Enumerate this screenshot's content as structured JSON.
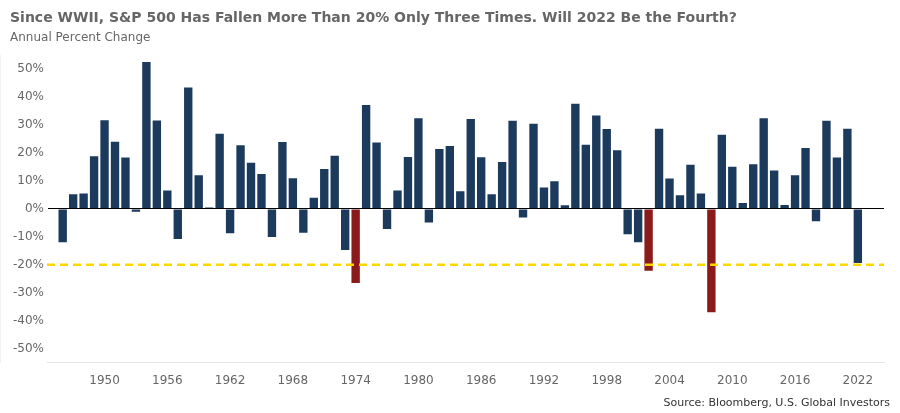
{
  "chart_data": {
    "type": "bar",
    "title": "Since WWII, S&P 500 Has Fallen More Than 20% Only Three Times. Will 2022 Be the Fourth?",
    "subtitle": "Annual Percent Change",
    "source": "Source: Bloomberg, U.S. Global Investors",
    "x": [
      1946,
      1947,
      1948,
      1949,
      1950,
      1951,
      1952,
      1953,
      1954,
      1955,
      1956,
      1957,
      1958,
      1959,
      1960,
      1961,
      1962,
      1963,
      1964,
      1965,
      1966,
      1967,
      1968,
      1969,
      1970,
      1971,
      1972,
      1973,
      1974,
      1975,
      1976,
      1977,
      1978,
      1979,
      1980,
      1981,
      1982,
      1983,
      1984,
      1985,
      1986,
      1987,
      1988,
      1989,
      1990,
      1991,
      1992,
      1993,
      1994,
      1995,
      1996,
      1997,
      1998,
      1999,
      2000,
      2001,
      2002,
      2003,
      2004,
      2005,
      2006,
      2007,
      2008,
      2009,
      2010,
      2011,
      2012,
      2013,
      2014,
      2015,
      2016,
      2017,
      2018,
      2019,
      2020,
      2021,
      2022
    ],
    "values": [
      -11.9,
      5.2,
      5.5,
      18.8,
      31.7,
      24.0,
      18.4,
      -1.0,
      52.6,
      31.6,
      6.6,
      -10.8,
      43.4,
      12.0,
      0.5,
      26.9,
      -8.7,
      22.8,
      16.5,
      12.5,
      -10.1,
      23.9,
      11.0,
      -8.5,
      4.0,
      14.3,
      19.0,
      -14.7,
      -26.5,
      37.2,
      23.8,
      -7.2,
      6.6,
      18.6,
      32.4,
      -4.9,
      21.4,
      22.5,
      6.3,
      32.2,
      18.5,
      5.2,
      16.8,
      31.5,
      -3.1,
      30.5,
      7.7,
      9.9,
      1.3,
      37.6,
      23.0,
      33.4,
      28.6,
      21.0,
      -9.1,
      -11.9,
      -22.1,
      28.7,
      10.9,
      4.9,
      15.8,
      5.5,
      -37.0,
      26.5,
      15.1,
      2.1,
      16.0,
      32.4,
      13.7,
      1.4,
      12.0,
      21.8,
      -4.4,
      31.5,
      18.4,
      28.7,
      -19.4
    ],
    "colors": [
      "#1b3a5c",
      "#1b3a5c",
      "#1b3a5c",
      "#1b3a5c",
      "#1b3a5c",
      "#1b3a5c",
      "#1b3a5c",
      "#1b3a5c",
      "#1b3a5c",
      "#1b3a5c",
      "#1b3a5c",
      "#1b3a5c",
      "#1b3a5c",
      "#1b3a5c",
      "#1b3a5c",
      "#1b3a5c",
      "#1b3a5c",
      "#1b3a5c",
      "#1b3a5c",
      "#1b3a5c",
      "#1b3a5c",
      "#1b3a5c",
      "#1b3a5c",
      "#1b3a5c",
      "#1b3a5c",
      "#1b3a5c",
      "#1b3a5c",
      "#1b3a5c",
      "#8b1a1a",
      "#1b3a5c",
      "#1b3a5c",
      "#1b3a5c",
      "#1b3a5c",
      "#1b3a5c",
      "#1b3a5c",
      "#1b3a5c",
      "#1b3a5c",
      "#1b3a5c",
      "#1b3a5c",
      "#1b3a5c",
      "#1b3a5c",
      "#1b3a5c",
      "#1b3a5c",
      "#1b3a5c",
      "#1b3a5c",
      "#1b3a5c",
      "#1b3a5c",
      "#1b3a5c",
      "#1b3a5c",
      "#1b3a5c",
      "#1b3a5c",
      "#1b3a5c",
      "#1b3a5c",
      "#1b3a5c",
      "#1b3a5c",
      "#1b3a5c",
      "#8b1a1a",
      "#1b3a5c",
      "#1b3a5c",
      "#1b3a5c",
      "#1b3a5c",
      "#1b3a5c",
      "#8b1a1a",
      "#1b3a5c",
      "#1b3a5c",
      "#1b3a5c",
      "#1b3a5c",
      "#1b3a5c",
      "#1b3a5c",
      "#1b3a5c",
      "#1b3a5c",
      "#1b3a5c",
      "#1b3a5c",
      "#1b3a5c",
      "#1b3a5c",
      "#1b3a5c",
      "#1b3a5c"
    ],
    "threshold": {
      "value": -20,
      "color": "#FFD700"
    },
    "xlim": [
      1944.5,
      2024.5
    ],
    "xticks": [
      1950,
      1956,
      1962,
      1968,
      1974,
      1980,
      1986,
      1992,
      1998,
      2004,
      2010,
      2016,
      2022
    ],
    "ylim": [
      -55,
      55
    ],
    "yticks": [
      {
        "value": -50,
        "label": "-50%"
      },
      {
        "value": -40,
        "label": "-40%"
      },
      {
        "value": -30,
        "label": "-30%"
      },
      {
        "value": -20,
        "label": "-20%"
      },
      {
        "value": -10,
        "label": "-10%"
      },
      {
        "value": 0,
        "label": "0%"
      },
      {
        "value": 10,
        "label": "10%"
      },
      {
        "value": 20,
        "label": "20%"
      },
      {
        "value": 30,
        "label": "30%"
      },
      {
        "value": 40,
        "label": "40%"
      },
      {
        "value": 50,
        "label": "50%"
      }
    ],
    "grid": false
  }
}
